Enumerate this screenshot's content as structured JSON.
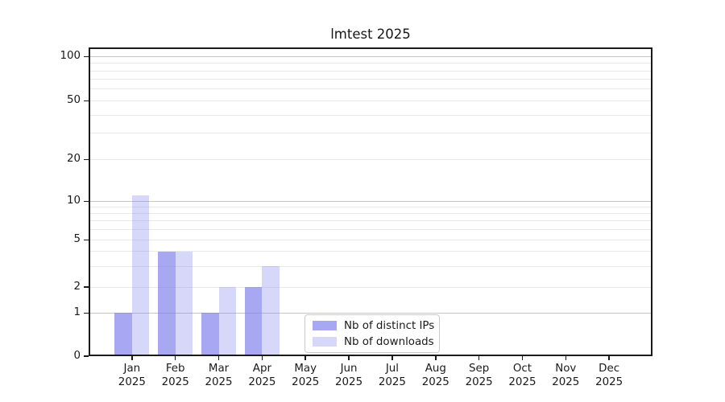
{
  "figure": {
    "background": "#ffffff"
  },
  "chart_data": {
    "type": "bar",
    "title": "lmtest 2025",
    "x_categories": [
      "Jan",
      "Feb",
      "Mar",
      "Apr",
      "May",
      "Jun",
      "Jul",
      "Aug",
      "Sep",
      "Oct",
      "Nov",
      "Dec"
    ],
    "x_year": "2025",
    "series": [
      {
        "name": "Nb of distinct IPs",
        "color": "rgba(123,123,235,0.66)",
        "values": [
          1,
          4,
          1,
          2,
          0,
          0,
          0,
          0,
          0,
          0,
          0,
          0
        ]
      },
      {
        "name": "Nb of downloads",
        "color": "rgba(123,123,235,0.30)",
        "values": [
          11,
          4,
          2,
          3,
          0,
          0,
          0,
          0,
          0,
          0,
          0,
          0
        ]
      }
    ],
    "y_axis": {
      "scale": "symlog",
      "tick_values": [
        0,
        1,
        2,
        5,
        10,
        20,
        50,
        100
      ],
      "major_grid": [
        1,
        10,
        100
      ],
      "minor_grid": [
        2,
        3,
        4,
        5,
        6,
        7,
        8,
        9,
        20,
        30,
        40,
        50,
        60,
        70,
        80,
        90
      ],
      "ylim": [
        0,
        115
      ]
    },
    "legend_position": "bottom-center",
    "colors": {
      "bar_base": "#7b7beb",
      "major_grid": "#c6c6c6",
      "minor_grid": "#e9e9e9",
      "spine": "#1a1a1a"
    }
  }
}
